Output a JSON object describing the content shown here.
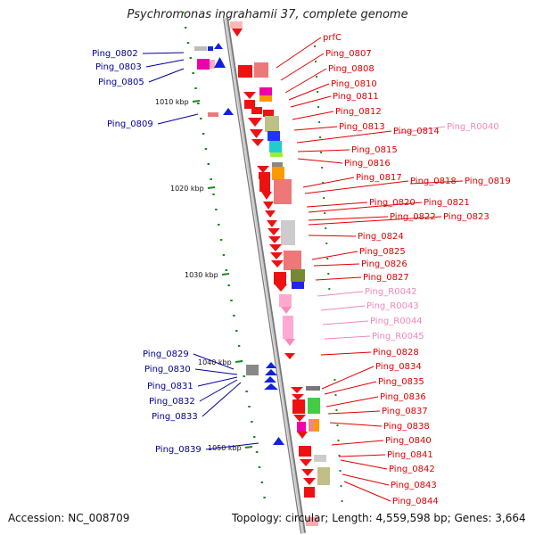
{
  "title": "Psychromonas ingrahamii 37, complete genome",
  "accession": "Accession: NC_008709",
  "topology": "Topology: circular; Length: 4,559,598 bp; Genes: 3,664",
  "colors": {
    "backbone": "#9a9a9a",
    "forward_label": "#e00000",
    "reverse_label": "#000099",
    "rna_label": "#ee88bb",
    "tick": "#1a8a1a"
  },
  "scale": [
    "1010 kbp",
    "1020 kbp",
    "1030 kbp",
    "1040 kbp",
    "1050 kbp"
  ],
  "left_labels": [
    "Ping_0802",
    "Ping_0803",
    "Ping_0805",
    "Ping_0809",
    "Ping_0829",
    "Ping_0830",
    "Ping_0831",
    "Ping_0832",
    "Ping_0833",
    "Ping_0839"
  ],
  "right_labels": [
    "prfC",
    "Ping_0807",
    "Ping_0808",
    "Ping_0810",
    "Ping_0811",
    "Ping_0812",
    "Ping_0813",
    "Ping_0814",
    "Ping_R0040",
    "Ping_0815",
    "Ping_0816",
    "Ping_0817",
    "Ping_0818",
    "Ping_0819",
    "Ping_0820",
    "Ping_0821",
    "Ping_0822",
    "Ping_0823",
    "Ping_0824",
    "Ping_0825",
    "Ping_0826",
    "Ping_0827",
    "Ping_R0042",
    "Ping_R0043",
    "Ping_R0044",
    "Ping_R0045",
    "Ping_0828",
    "Ping_0834",
    "Ping_0835",
    "Ping_0836",
    "Ping_0837",
    "Ping_0838",
    "Ping_0840",
    "Ping_0841",
    "Ping_0842",
    "Ping_0843",
    "Ping_0844"
  ]
}
